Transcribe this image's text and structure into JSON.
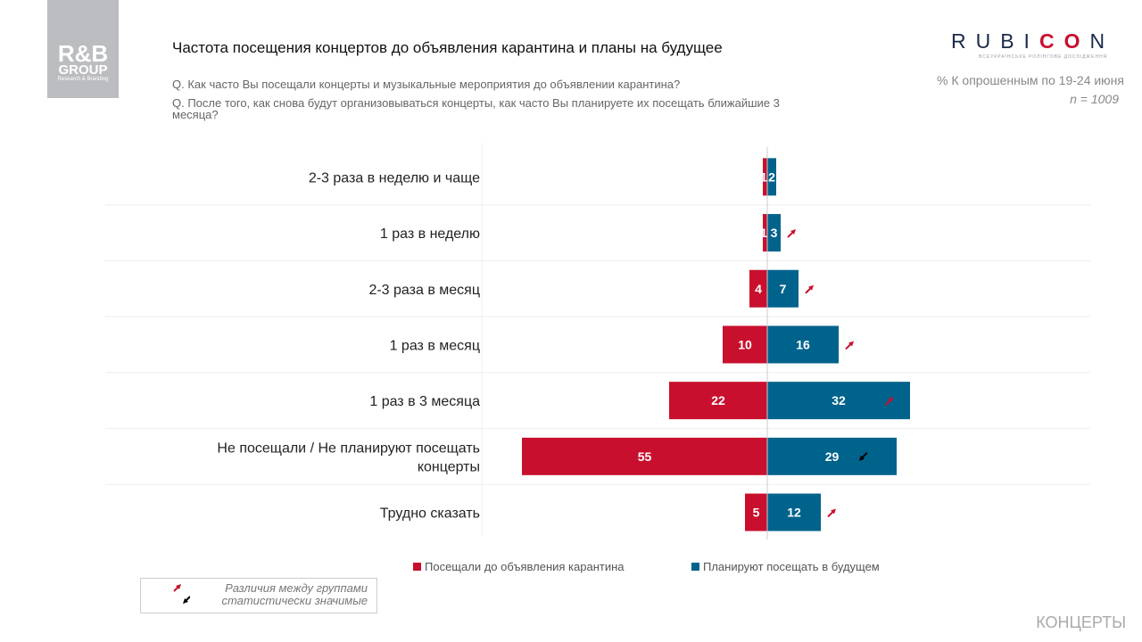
{
  "header": {
    "title": "Частота посещения концертов до объявления карантина и планы на будущее",
    "q1": "Q. Как часто Вы посещали концерты и музыкальные мероприятия до объявлении карантина?",
    "q2": "Q. После того, как снова будут организовываться концерты, как часто Вы планируете их посещать ближайшие 3 месяца?",
    "base": "% К опрошенным по 19-24 июня",
    "n": "n = 1009"
  },
  "logos": {
    "rb": "R&B GROUP Research & Branding",
    "rubicon": "RUBICON",
    "rubicon_sub": "ВСЕУКРАЇНСЬКЕ РОЛІНГОВЕ ДОСЛІДЖЕННЯ"
  },
  "chart_data": {
    "type": "bar",
    "orientation": "horizontal-diverging",
    "categories": [
      "2-3 раза в неделю и чаще",
      "1 раз в неделю",
      "2-3 раза в месяц",
      "1 раз в месяц",
      "1 раз в 3 месяца",
      "Не посещали / Не планируют посещать концерты",
      "Трудно сказать"
    ],
    "series": [
      {
        "name": "Посещали до объявления карантина",
        "color": "#c8102e",
        "values": [
          1,
          1,
          4,
          10,
          22,
          55,
          5
        ]
      },
      {
        "name": "Планируют посещать в будущем",
        "color": "#00638c",
        "values": [
          2,
          3,
          7,
          16,
          32,
          29,
          12
        ]
      }
    ],
    "significance": [
      "none",
      "up",
      "up",
      "up",
      "up",
      "down",
      "up"
    ]
  },
  "note": {
    "line1": "Различия между группами",
    "line2": "статистически значимые"
  },
  "footer": "КОНЦЕРТЫ"
}
